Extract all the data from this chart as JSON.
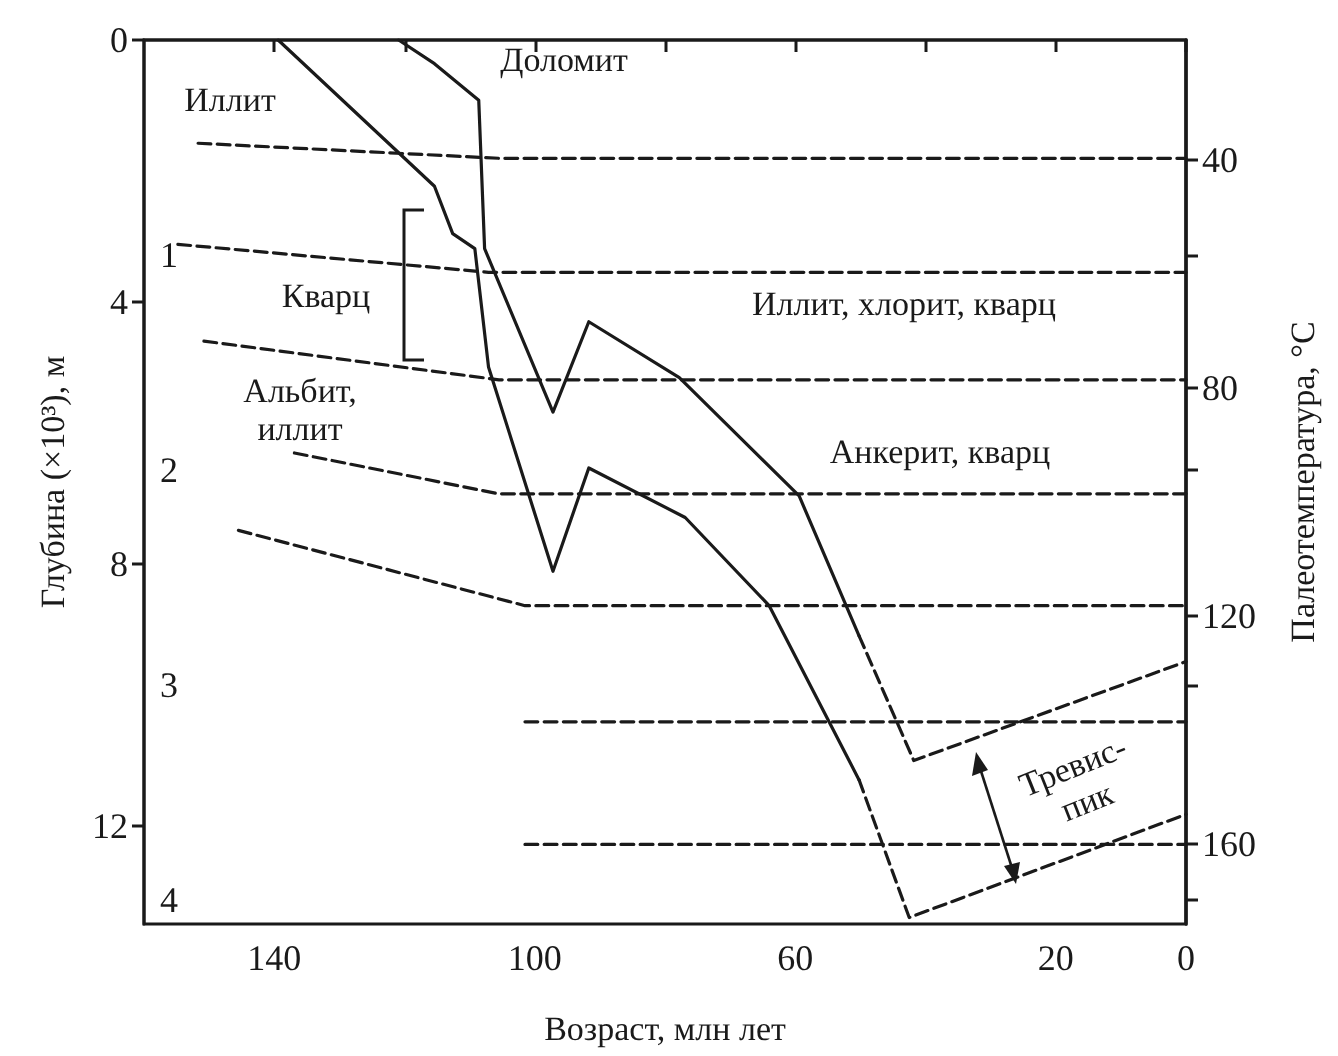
{
  "chart_data": {
    "type": "line",
    "xlabel": "Возраст, млн лет",
    "ylabel": "Глубина (×10³), м",
    "y2label": "Палеотемпература, °С",
    "xlim": [
      160,
      0
    ],
    "xticks": [
      140,
      {
        "value": 120,
        "label": null
      },
      100,
      {
        "value": 80,
        "label": null
      },
      60,
      {
        "value": 40,
        "label": null
      },
      20,
      0
    ],
    "ylim": [
      4.11,
      0
    ],
    "yticks": [
      1,
      2,
      3,
      4
    ],
    "y3lim": [
      13.49,
      0
    ],
    "y3ticks": [
      0,
      4,
      8,
      12
    ],
    "y2lim": [
      174,
      19
    ],
    "y2ticks": [
      40,
      80,
      120,
      160
    ],
    "grid": false,
    "marker": "none",
    "series": [
      {
        "color": "#1a1a1a",
        "line_style": "solid",
        "x": [
          139.4,
          115.4,
          112.6,
          109.2,
          107.1,
          97.2,
          91.7,
          76.9,
          64.0,
          50.2
        ],
        "values": [
          0,
          0.68,
          0.9,
          0.97,
          1.52,
          2.47,
          1.99,
          2.22,
          2.63,
          3.44
        ]
      },
      {
        "color": "#1a1a1a",
        "line_style": "dashed",
        "x": [
          50.2,
          42.5,
          0
        ],
        "values": [
          3.44,
          4.08,
          3.6
        ]
      },
      {
        "color": "#1a1a1a",
        "line_style": "solid",
        "x": [
          120.9,
          115.4,
          108.6,
          107.7,
          97.2,
          91.7,
          77.8,
          59.4,
          50.2
        ],
        "values": [
          0,
          0.11,
          0.28,
          0.97,
          1.73,
          1.31,
          1.57,
          2.12,
          2.77
        ]
      },
      {
        "color": "#1a1a1a",
        "line_style": "dashed",
        "x": [
          50.2,
          41.8,
          0
        ],
        "values": [
          2.77,
          3.35,
          2.89
        ]
      },
      {
        "color": "#1a1a1a",
        "line_style": "dashed",
        "x": [
          151.7,
          105.5,
          0
        ],
        "values": [
          0.48,
          0.55,
          0.55
        ]
      },
      {
        "color": "#1a1a1a",
        "line_style": "dashed",
        "x": [
          154.8,
          107.1,
          0
        ],
        "values": [
          0.95,
          1.08,
          1.08
        ]
      },
      {
        "color": "#1a1a1a",
        "line_style": "dashed",
        "x": [
          150.8,
          105.5,
          0
        ],
        "values": [
          1.4,
          1.58,
          1.58
        ]
      },
      {
        "color": "#1a1a1a",
        "line_style": "dashed",
        "x": [
          136.9,
          105.5,
          0
        ],
        "values": [
          1.92,
          2.11,
          2.11
        ]
      },
      {
        "color": "#1a1a1a",
        "line_style": "dashed",
        "x": [
          145.5,
          101.5,
          0
        ],
        "values": [
          2.28,
          2.63,
          2.63
        ]
      },
      {
        "color": "#1a1a1a",
        "line_style": "dashed",
        "x": [
          101.5,
          0
        ],
        "values": [
          3.17,
          3.17
        ]
      },
      {
        "color": "#1a1a1a",
        "line_style": "dashed",
        "x": [
          101.5,
          0
        ],
        "values": [
          3.74,
          3.74
        ]
      }
    ],
    "annotations": [
      "Иллит",
      "Доломит",
      "Кварц",
      "Альбит,\nиллит",
      "Иллит, хлорит, кварц",
      "Анкерит, кварц",
      "Тревис-\nпик"
    ]
  }
}
